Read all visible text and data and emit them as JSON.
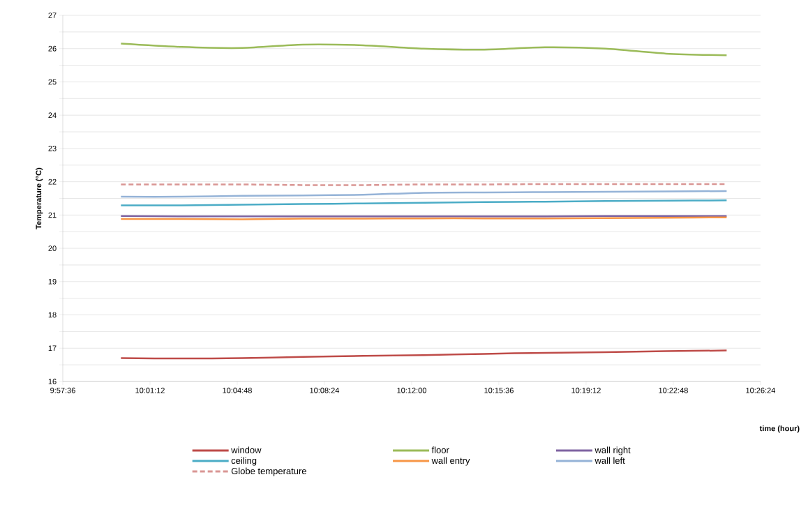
{
  "chart_data": {
    "type": "line",
    "xlabel": "time (hour)",
    "ylabel": "Temperature (°C)",
    "x": [
      10.0,
      10.0417,
      10.0833,
      10.125,
      10.1667,
      10.2083,
      10.25,
      10.2917,
      10.3333,
      10.375,
      10.4167
    ],
    "series": [
      {
        "name": "window",
        "color": "#be4b48",
        "values": [
          16.7,
          16.69,
          16.7,
          16.74,
          16.77,
          16.79,
          16.83,
          16.86,
          16.88,
          16.91,
          16.93
        ]
      },
      {
        "name": "floor",
        "color": "#9bbb59",
        "values": [
          26.15,
          26.05,
          26.02,
          26.12,
          26.1,
          26.0,
          25.97,
          26.04,
          26.0,
          25.85,
          25.8
        ]
      },
      {
        "name": "wall right",
        "color": "#7f64a2",
        "values": [
          20.97,
          20.96,
          20.96,
          20.96,
          20.96,
          20.96,
          20.96,
          20.96,
          20.97,
          20.97,
          20.97
        ]
      },
      {
        "name": "ceiling",
        "color": "#4bacc6",
        "values": [
          21.29,
          21.29,
          21.31,
          21.33,
          21.35,
          21.37,
          21.39,
          21.4,
          21.42,
          21.43,
          21.44
        ]
      },
      {
        "name": "wall entry",
        "color": "#f79646",
        "values": [
          20.88,
          20.88,
          20.87,
          20.89,
          20.89,
          20.9,
          20.9,
          20.9,
          20.91,
          20.92,
          20.93
        ]
      },
      {
        "name": "wall left",
        "color": "#95b3d7",
        "values": [
          21.55,
          21.55,
          21.58,
          21.59,
          21.61,
          21.67,
          21.68,
          21.69,
          21.7,
          21.71,
          21.72
        ]
      },
      {
        "name": "Globe temperature",
        "color": "#d99694",
        "line_style": "dashed",
        "values": [
          21.92,
          21.92,
          21.92,
          21.9,
          21.9,
          21.92,
          21.92,
          21.93,
          21.93,
          21.93,
          21.93
        ]
      }
    ],
    "xlim": [
      9.96,
      10.44
    ],
    "xticks": [
      {
        "value": 9.96,
        "label": "9:57:36"
      },
      {
        "value": 10.02,
        "label": "10:01:12"
      },
      {
        "value": 10.08,
        "label": "10:04:48"
      },
      {
        "value": 10.14,
        "label": "10:08:24"
      },
      {
        "value": 10.2,
        "label": "10:12:00"
      },
      {
        "value": 10.26,
        "label": "10:15:36"
      },
      {
        "value": 10.32,
        "label": "10:19:12"
      },
      {
        "value": 10.38,
        "label": "10:22:48"
      },
      {
        "value": 10.44,
        "label": "10:26:24"
      }
    ],
    "ylim": [
      16,
      27
    ],
    "yticks": [
      16,
      {
        "value": 16.5,
        "label": null
      },
      17,
      {
        "value": 17.5,
        "label": null
      },
      18,
      {
        "value": 18.5,
        "label": null
      },
      19,
      {
        "value": 19.5,
        "label": null
      },
      20,
      {
        "value": 20.5,
        "label": null
      },
      21,
      {
        "value": 21.5,
        "label": null
      },
      22,
      {
        "value": 22.5,
        "label": null
      },
      23,
      {
        "value": 23.5,
        "label": null
      },
      24,
      {
        "value": 24.5,
        "label": null
      },
      25,
      {
        "value": 25.5,
        "label": null
      },
      26,
      {
        "value": 26.5,
        "label": null
      },
      27
    ],
    "grid": "y",
    "legend": "bottom",
    "marker": "none",
    "line_style": "solid"
  }
}
